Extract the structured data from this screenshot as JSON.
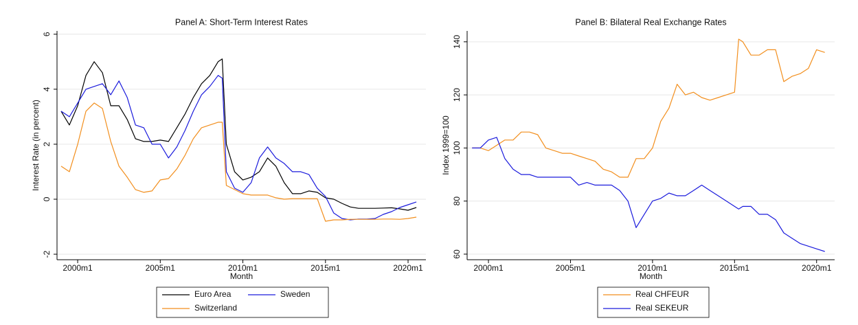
{
  "chart_data": [
    {
      "type": "line",
      "title": "Panel A: Short-Term Interest Rates",
      "x_label": "Month",
      "y_label": "Interest Rate (in percent)",
      "x": [
        1999,
        1999.5,
        2000,
        2000.5,
        2001,
        2001.5,
        2002,
        2002.5,
        2003,
        2003.5,
        2004,
        2004.5,
        2005,
        2005.5,
        2006,
        2006.5,
        2007,
        2007.5,
        2008,
        2008.5,
        2008.75,
        2009,
        2009.5,
        2010,
        2010.5,
        2011,
        2011.5,
        2012,
        2012.5,
        2013,
        2013.5,
        2014,
        2014.5,
        2015,
        2015.5,
        2016,
        2016.5,
        2017,
        2017.5,
        2018,
        2018.5,
        2019,
        2019.5,
        2020,
        2020.5
      ],
      "series": [
        {
          "name": "Euro Area",
          "color": "#000000",
          "values": [
            3.2,
            2.7,
            3.4,
            4.5,
            5.0,
            4.6,
            3.4,
            3.4,
            2.9,
            2.2,
            2.1,
            2.1,
            2.15,
            2.1,
            2.6,
            3.1,
            3.7,
            4.2,
            4.5,
            5.0,
            5.1,
            2.0,
            1.0,
            0.7,
            0.8,
            1.0,
            1.5,
            1.2,
            0.6,
            0.2,
            0.2,
            0.3,
            0.25,
            0.05,
            0.0,
            -0.15,
            -0.28,
            -0.33,
            -0.33,
            -0.33,
            -0.32,
            -0.31,
            -0.35,
            -0.4,
            -0.3
          ]
        },
        {
          "name": "Sweden",
          "color": "#1a1adc",
          "values": [
            3.2,
            3.0,
            3.5,
            4.0,
            4.1,
            4.2,
            3.8,
            4.3,
            3.7,
            2.7,
            2.6,
            2.0,
            2.0,
            1.5,
            1.9,
            2.5,
            3.2,
            3.8,
            4.1,
            4.5,
            4.4,
            1.0,
            0.4,
            0.25,
            0.6,
            1.5,
            1.9,
            1.5,
            1.3,
            1.0,
            1.0,
            0.9,
            0.4,
            0.1,
            -0.5,
            -0.7,
            -0.75,
            -0.72,
            -0.72,
            -0.7,
            -0.55,
            -0.45,
            -0.3,
            -0.2,
            -0.1
          ]
        },
        {
          "name": "Switzerland",
          "color": "#f28e1c",
          "values": [
            1.2,
            1.0,
            2.0,
            3.2,
            3.5,
            3.3,
            2.1,
            1.2,
            0.8,
            0.35,
            0.25,
            0.3,
            0.7,
            0.75,
            1.1,
            1.6,
            2.2,
            2.6,
            2.7,
            2.8,
            2.8,
            0.5,
            0.35,
            0.2,
            0.15,
            0.15,
            0.15,
            0.05,
            0.0,
            0.02,
            0.02,
            0.02,
            0.02,
            -0.8,
            -0.75,
            -0.75,
            -0.73,
            -0.73,
            -0.73,
            -0.73,
            -0.72,
            -0.72,
            -0.73,
            -0.7,
            -0.65
          ]
        }
      ],
      "xlim": [
        1998.75,
        2021.08
      ],
      "xticks": [
        {
          "value": 2000,
          "label": "2000m1"
        },
        {
          "value": 2005,
          "label": "2005m1"
        },
        {
          "value": 2010,
          "label": "2010m1"
        },
        {
          "value": 2015,
          "label": "2015m1"
        },
        {
          "value": 2020,
          "label": "2020m1"
        }
      ],
      "ylim": [
        -2.2,
        6.12
      ],
      "yticks": [
        -2,
        0,
        2,
        4,
        6
      ],
      "grid": true,
      "legend_position": "bottom",
      "legend_columns": 2
    },
    {
      "type": "line",
      "title": "Panel B: Bilateral Real Exchange Rates",
      "x_label": "Month",
      "y_label": "Index 1999=100",
      "x": [
        1999,
        1999.5,
        2000,
        2000.5,
        2001,
        2001.5,
        2002,
        2002.5,
        2003,
        2003.5,
        2004,
        2004.5,
        2005,
        2005.5,
        2006,
        2006.5,
        2007,
        2007.5,
        2008,
        2008.5,
        2009,
        2009.5,
        2010,
        2010.5,
        2011,
        2011.5,
        2012,
        2012.5,
        2013,
        2013.5,
        2014,
        2014.5,
        2015,
        2015.25,
        2015.5,
        2016,
        2016.5,
        2017,
        2017.5,
        2018,
        2018.5,
        2019,
        2019.5,
        2020,
        2020.5
      ],
      "series": [
        {
          "name": "Real CHFEUR",
          "color": "#f28e1c",
          "values": [
            100,
            100,
            99,
            101,
            103,
            103,
            106,
            106,
            105,
            100,
            99,
            98,
            98,
            97,
            96,
            95,
            92,
            91,
            89,
            89,
            96,
            96,
            100,
            110,
            115,
            124,
            120,
            121,
            119,
            118,
            119,
            120,
            121,
            141,
            140,
            135,
            135,
            137,
            137,
            125,
            127,
            128,
            130,
            137,
            136
          ]
        },
        {
          "name": "Real SEKEUR",
          "color": "#1a1adc",
          "values": [
            100,
            100,
            103,
            104,
            96,
            92,
            90,
            90,
            89,
            89,
            89,
            89,
            89,
            86,
            87,
            86,
            86,
            86,
            84,
            80,
            70,
            75,
            80,
            81,
            83,
            82,
            82,
            84,
            86,
            84,
            82,
            80,
            78,
            77,
            78,
            78,
            75,
            75,
            73,
            68,
            66,
            64,
            63,
            62,
            61
          ]
        }
      ],
      "xlim": [
        1998.7,
        2021.1
      ],
      "xticks": [
        {
          "value": 2000,
          "label": "2000m1"
        },
        {
          "value": 2005,
          "label": "2005m1"
        },
        {
          "value": 2010,
          "label": "2010m1"
        },
        {
          "value": 2015,
          "label": "2015m1"
        },
        {
          "value": 2020,
          "label": "2020m1"
        }
      ],
      "ylim": [
        57.9,
        144.1
      ],
      "yticks": [
        60,
        80,
        100,
        120,
        140
      ],
      "grid": true,
      "legend_position": "bottom",
      "legend_columns": 1
    }
  ]
}
